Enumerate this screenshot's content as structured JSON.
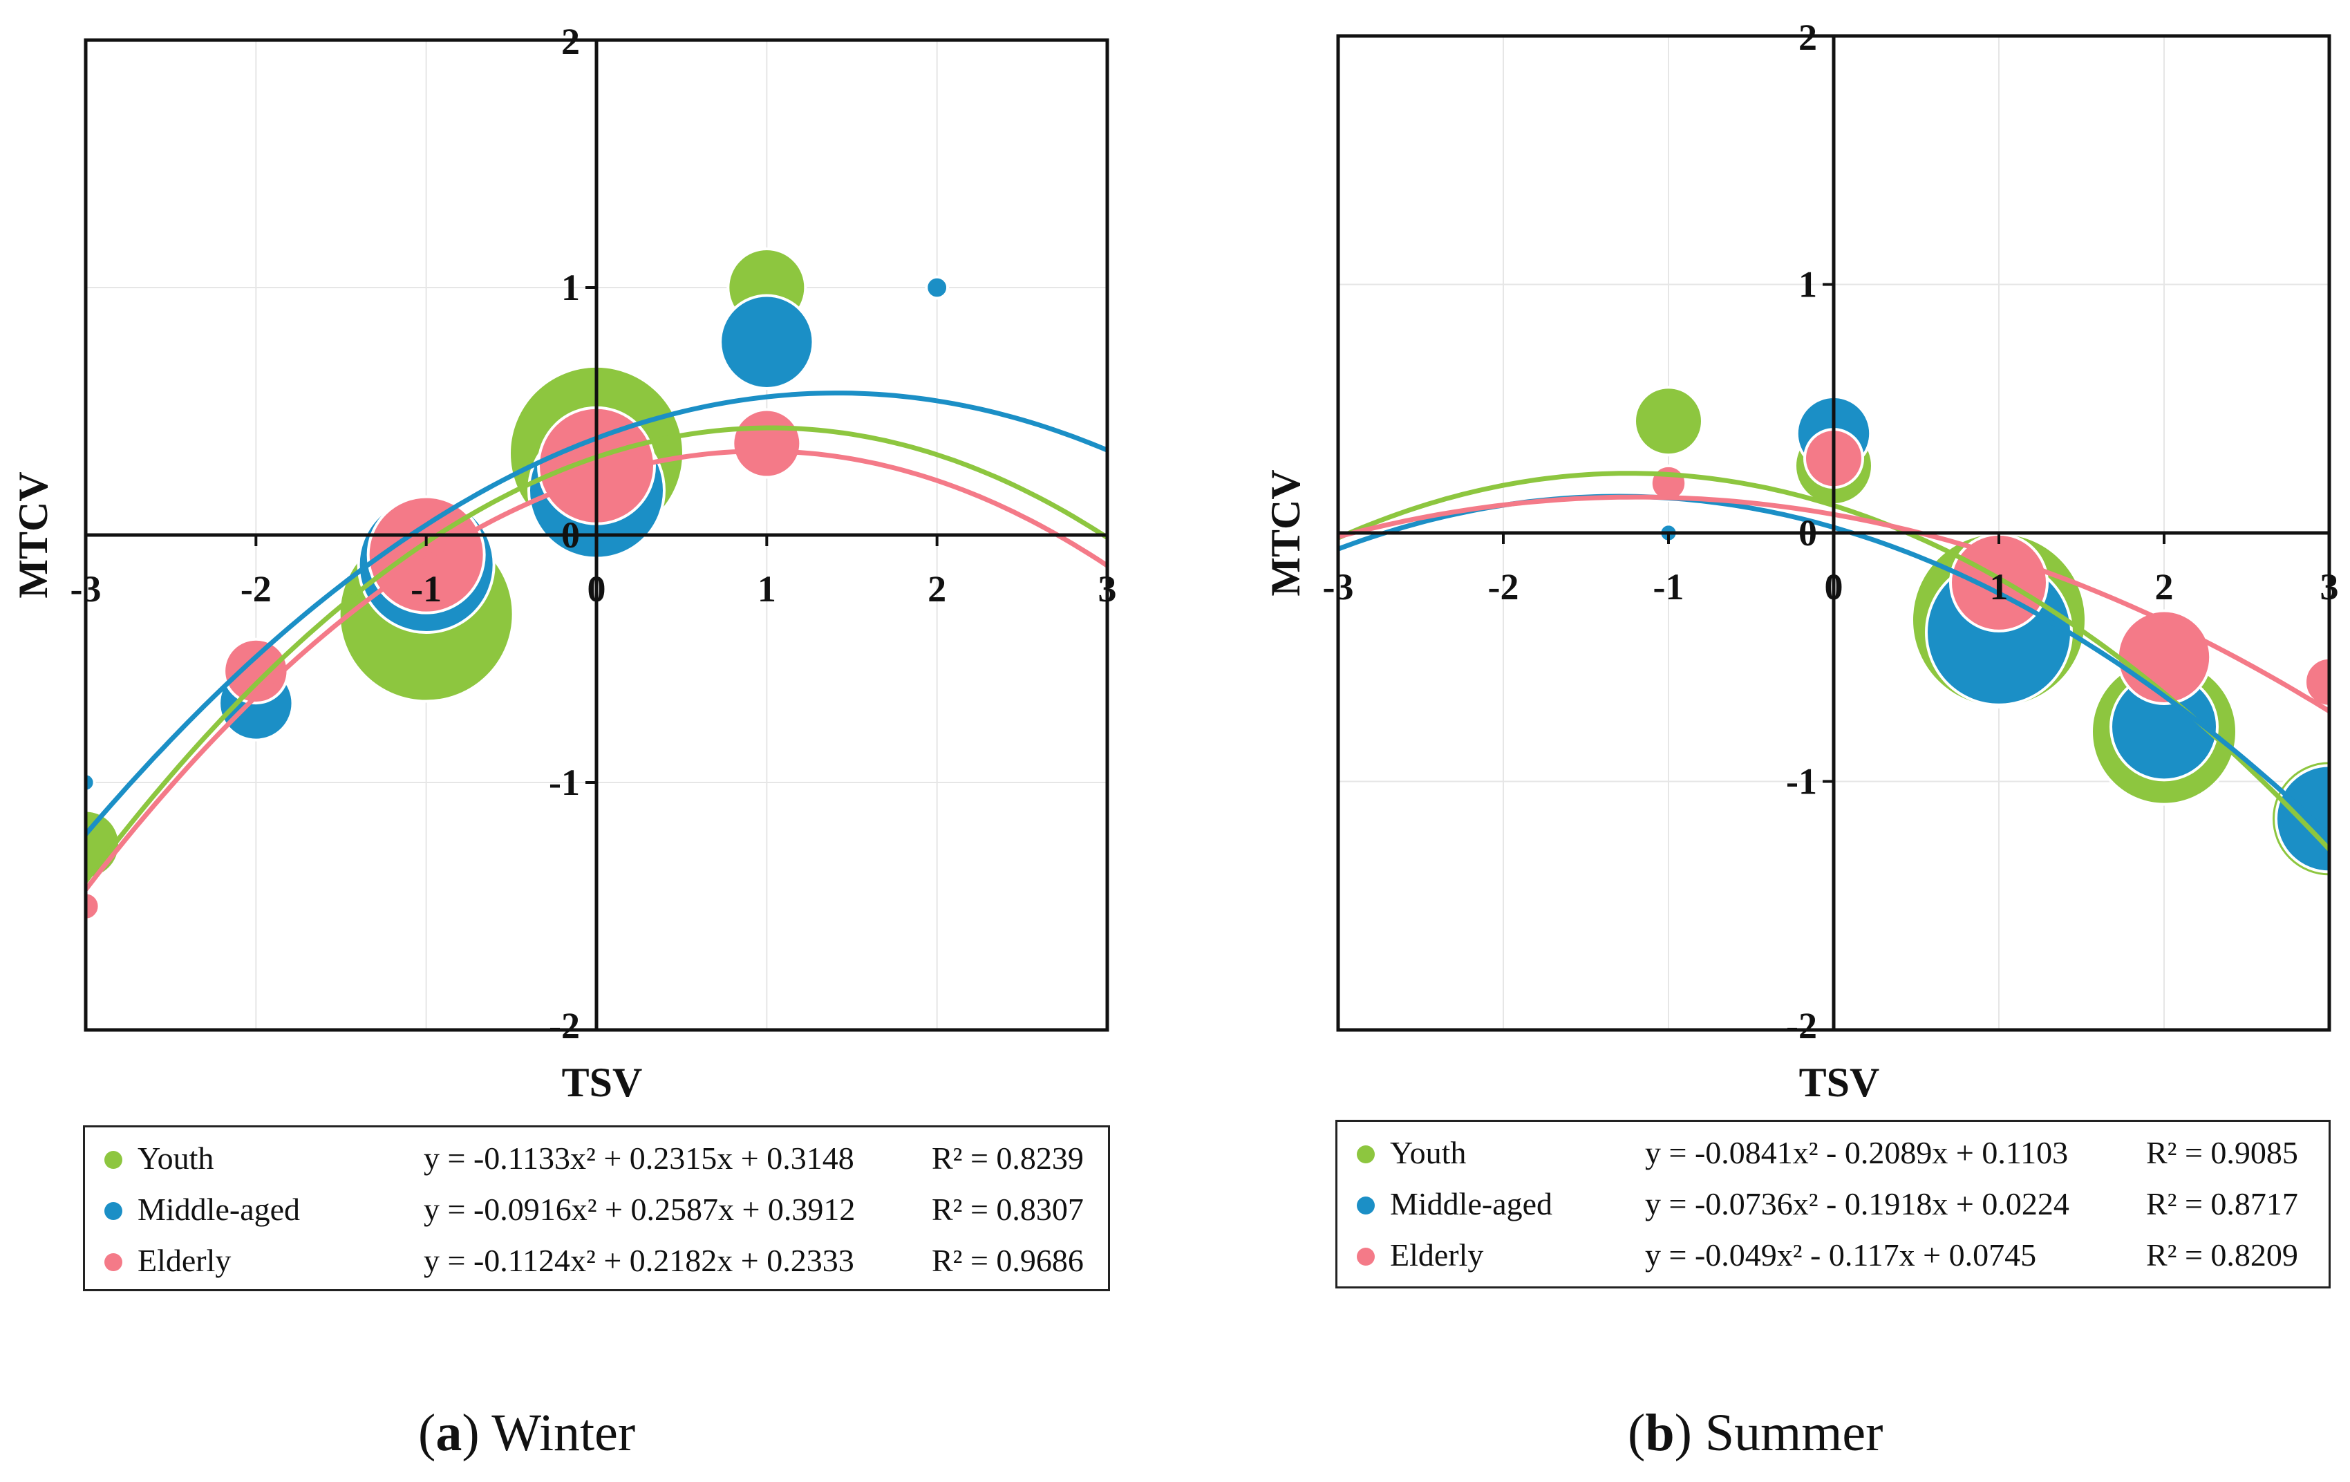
{
  "chart_data": [
    {
      "type": "scatter",
      "subtype": "bubble with quadratic fits",
      "panel_letter": "a",
      "panel_name": "Winter",
      "xlabel": "TSV",
      "ylabel": "MTCV",
      "xlim": [
        -3,
        3
      ],
      "ylim": [
        -2,
        2
      ],
      "x_ticks": [
        "-3",
        "-2",
        "-1",
        "0",
        "1",
        "2",
        "3"
      ],
      "y_ticks": [
        "2",
        "1",
        "0",
        "-1",
        "-2"
      ],
      "grid": true,
      "series": [
        {
          "name": "Youth",
          "color": "#8dc63f",
          "equation": "y = -0.1133x² + 0.2315x + 0.3148",
          "r2": "R² = 0.8239",
          "coef": [
            -0.1133,
            0.2315,
            0.3148
          ],
          "points": [
            {
              "x": -3,
              "y": -1.25,
              "size": 3.5
            },
            {
              "x": -2,
              "y": -0.68,
              "size": 3.5
            },
            {
              "x": -1,
              "y": -0.32,
              "size": 9
            },
            {
              "x": 0,
              "y": 0.33,
              "size": 9
            },
            {
              "x": 1,
              "y": 1.0,
              "size": 4
            }
          ]
        },
        {
          "name": "Middle-aged",
          "color": "#1b8fc6",
          "equation": "y = -0.0916x² + 0.2587x + 0.3912",
          "r2": "R² = 0.8307",
          "coef": [
            -0.0916,
            0.2587,
            0.3912
          ],
          "points": [
            {
              "x": -3,
              "y": -1.0,
              "size": 0.9
            },
            {
              "x": -2,
              "y": -0.68,
              "size": 3.8
            },
            {
              "x": -1,
              "y": -0.12,
              "size": 7
            },
            {
              "x": 0,
              "y": 0.18,
              "size": 7
            },
            {
              "x": 1,
              "y": 0.78,
              "size": 4.8
            },
            {
              "x": 2,
              "y": 1.0,
              "size": 1.1
            }
          ]
        },
        {
          "name": "Elderly",
          "color": "#f47a88",
          "equation": "y = -0.1124x² + 0.2182x + 0.2333",
          "r2": "R² = 0.9686",
          "coef": [
            -0.1124,
            0.2182,
            0.2333
          ],
          "points": [
            {
              "x": -3,
              "y": -1.5,
              "size": 1.4
            },
            {
              "x": -2,
              "y": -0.55,
              "size": 3.3
            },
            {
              "x": -1,
              "y": -0.08,
              "size": 6
            },
            {
              "x": 0,
              "y": 0.28,
              "size": 6
            },
            {
              "x": 1,
              "y": 0.37,
              "size": 3.5
            }
          ]
        }
      ]
    },
    {
      "type": "scatter",
      "subtype": "bubble with quadratic fits",
      "panel_letter": "b",
      "panel_name": "Summer",
      "xlabel": "TSV",
      "ylabel": "MTCV",
      "xlim": [
        -3,
        3
      ],
      "ylim": [
        -2,
        2
      ],
      "x_ticks": [
        "-3",
        "-2",
        "-1",
        "0",
        "1",
        "2",
        "3"
      ],
      "y_ticks": [
        "2",
        "1",
        "0",
        "-1",
        "-2"
      ],
      "grid": true,
      "series": [
        {
          "name": "Youth",
          "color": "#8dc63f",
          "equation": "y = -0.0841x² - 0.2089x + 0.1103",
          "r2": "R² = 0.9085",
          "coef": [
            -0.0841,
            -0.2089,
            0.1103
          ],
          "points": [
            {
              "x": -1,
              "y": 0.45,
              "size": 3.5
            },
            {
              "x": 0,
              "y": 0.27,
              "size": 4
            },
            {
              "x": 1,
              "y": -0.35,
              "size": 9
            },
            {
              "x": 2,
              "y": -0.8,
              "size": 7.5
            },
            {
              "x": 3,
              "y": -1.15,
              "size": 6
            }
          ]
        },
        {
          "name": "Middle-aged",
          "color": "#1b8fc6",
          "equation": "y = -0.0736x² - 0.1918x + 0.0224",
          "r2": "R² = 0.8717",
          "coef": [
            -0.0736,
            -0.1918,
            0.0224
          ],
          "points": [
            {
              "x": -1,
              "y": 0.0,
              "size": 0.9
            },
            {
              "x": 0,
              "y": 0.4,
              "size": 3.8
            },
            {
              "x": 1,
              "y": -0.4,
              "size": 7.5
            },
            {
              "x": 2,
              "y": -0.78,
              "size": 5.5
            },
            {
              "x": 3,
              "y": -1.15,
              "size": 5.5
            }
          ]
        },
        {
          "name": "Elderly",
          "color": "#f47a88",
          "equation": "y = -0.049x² - 0.117x + 0.0745",
          "r2": "R² = 0.8209",
          "coef": [
            -0.049,
            -0.117,
            0.0745
          ],
          "points": [
            {
              "x": -1,
              "y": 0.2,
              "size": 1.8
            },
            {
              "x": 0,
              "y": 0.3,
              "size": 3.0
            },
            {
              "x": 1,
              "y": -0.2,
              "size": 5
            },
            {
              "x": 2,
              "y": -0.5,
              "size": 4.8
            },
            {
              "x": 3,
              "y": -0.6,
              "size": 2.5
            }
          ]
        }
      ]
    }
  ]
}
